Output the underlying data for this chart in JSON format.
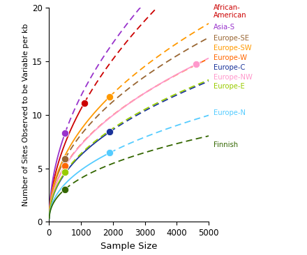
{
  "pop_configs": [
    {
      "label": "African-\nAmerican",
      "color": "#cc0000",
      "dot_x": 1100,
      "dot_y": 11.1,
      "b": 0.525,
      "solid_end": 1100
    },
    {
      "label": "Asia-S",
      "color": "#9933cc",
      "dot_x": 500,
      "dot_y": 8.3,
      "b": 0.505,
      "solid_end": 500
    },
    {
      "label": "Europe-SE",
      "color": "#996633",
      "dot_x": 500,
      "dot_y": 5.9,
      "b": 0.465,
      "solid_end": 500
    },
    {
      "label": "Europe-SW",
      "color": "#ff9900",
      "dot_x": 1900,
      "dot_y": 11.7,
      "b": 0.475,
      "solid_end": 1900
    },
    {
      "label": "Europe-W",
      "color": "#ff6600",
      "dot_x": 500,
      "dot_y": 5.25,
      "b": 0.463,
      "solid_end": 500
    },
    {
      "label": "Europe-C",
      "color": "#1a3399",
      "dot_x": 1900,
      "dot_y": 8.4,
      "b": 0.462,
      "solid_end": 1900
    },
    {
      "label": "Europe-NW",
      "color": "#ff99cc",
      "dot_x": 4600,
      "dot_y": 14.7,
      "b": 0.468,
      "solid_end": 4600
    },
    {
      "label": "Europe-E",
      "color": "#99cc00",
      "dot_x": 500,
      "dot_y": 4.65,
      "b": 0.455,
      "solid_end": 500
    },
    {
      "label": "Europe-N",
      "color": "#55ccff",
      "dot_x": 1900,
      "dot_y": 6.45,
      "b": 0.448,
      "solid_end": 1900
    },
    {
      "label": "Finnish",
      "color": "#336600",
      "dot_x": 500,
      "dot_y": 3.05,
      "b": 0.42,
      "solid_end": 500
    }
  ],
  "legend_entries": [
    {
      "label": "African-\nAmerican",
      "color": "#cc0000",
      "y": 20.3
    },
    {
      "label": "Asia-S",
      "color": "#9933cc",
      "y": 18.5
    },
    {
      "label": "Europe-SE",
      "color": "#996633",
      "y": 17.45
    },
    {
      "label": "Europe-SW",
      "color": "#ff9900",
      "y": 16.55
    },
    {
      "label": "Europe-W",
      "color": "#ff6600",
      "y": 15.65
    },
    {
      "label": "Europe-C",
      "color": "#1a3399",
      "y": 14.75
    },
    {
      "label": "Europe-NW",
      "color": "#ff99cc",
      "y": 13.85
    },
    {
      "label": "Europe-E",
      "color": "#99cc00",
      "y": 12.95
    },
    {
      "label": "Europe-N",
      "color": "#55ccff",
      "y": 10.5
    },
    {
      "label": "Finnish",
      "color": "#336600",
      "y": 7.5
    }
  ],
  "xlim": [
    0,
    5000
  ],
  "ylim": [
    0,
    20
  ],
  "xlabel": "Sample Size",
  "ylabel": "Number of Sites Observed to be Variable per kb",
  "xticks": [
    0,
    1000,
    2000,
    3000,
    4000,
    5000
  ],
  "yticks": [
    0,
    5,
    10,
    15,
    20
  ],
  "figsize": [
    4.4,
    3.66
  ],
  "dpi": 100
}
